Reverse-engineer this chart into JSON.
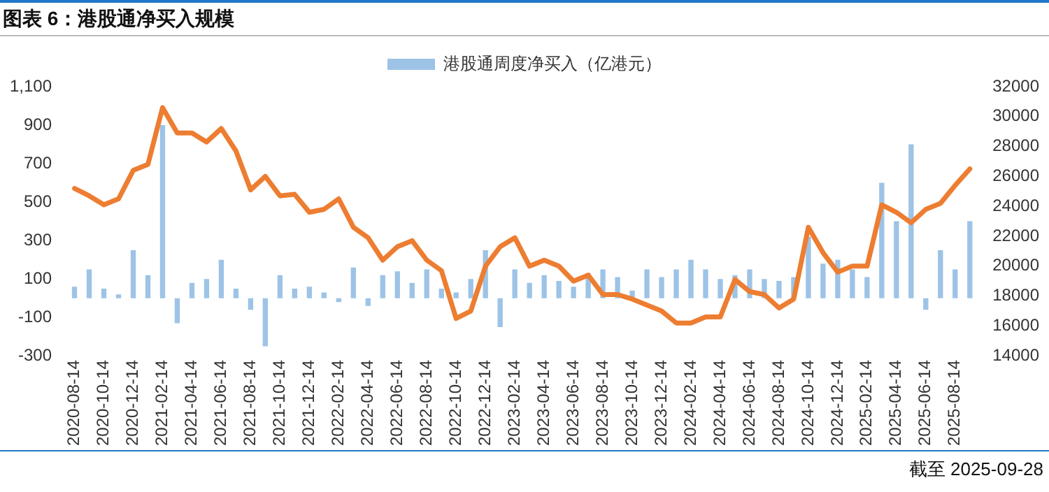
{
  "chart_data": {
    "type": "bar",
    "title": "图表 6：港股通净买入规模",
    "categories": [
      "2020-08-14",
      null,
      "2020-10-14",
      null,
      "2020-12-14",
      null,
      "2021-02-14",
      null,
      "2021-04-14",
      null,
      "2021-06-14",
      null,
      "2021-08-14",
      null,
      "2021-10-14",
      null,
      "2021-12-14",
      null,
      "2022-02-14",
      null,
      "2022-04-14",
      null,
      "2022-06-14",
      null,
      "2022-08-14",
      null,
      "2022-10-14",
      null,
      "2022-12-14",
      null,
      "2023-02-14",
      null,
      "2023-04-14",
      null,
      "2023-06-14",
      null,
      "2023-08-14",
      null,
      "2023-10-14",
      null,
      "2023-12-14",
      null,
      "2024-02-14",
      null,
      "2024-04-14",
      null,
      "2024-06-14",
      null,
      "2024-08-14",
      null,
      "2024-10-14",
      null,
      "2024-12-14",
      null,
      "2025-02-14",
      null,
      "2025-04-14",
      null,
      "2025-06-14",
      null,
      "2025-08-14",
      null
    ],
    "series": [
      {
        "name": "港股通周度净买入（亿港元）",
        "color": "#9dc3e6",
        "values": [
          60,
          150,
          50,
          20,
          250,
          120,
          900,
          -130,
          80,
          100,
          200,
          50,
          -60,
          -250,
          120,
          50,
          60,
          30,
          -20,
          160,
          -40,
          120,
          140,
          80,
          150,
          50,
          30,
          100,
          250,
          -150,
          150,
          80,
          120,
          90,
          60,
          130,
          150,
          110,
          40,
          150,
          110,
          150,
          200,
          150,
          100,
          120,
          150,
          100,
          90,
          110,
          320,
          180,
          200,
          150,
          110,
          600,
          400,
          800,
          -60,
          250,
          150,
          400
        ]
      },
      {
        "type": "line",
        "axis": "y2",
        "color": "#ed7d31",
        "values": [
          25200,
          24700,
          24100,
          24500,
          26400,
          26800,
          30600,
          28900,
          28900,
          28300,
          29200,
          27700,
          25100,
          26000,
          24700,
          24800,
          23600,
          23800,
          24500,
          22600,
          21900,
          20400,
          21300,
          21700,
          20400,
          19700,
          16500,
          17000,
          20000,
          21300,
          21900,
          20000,
          20400,
          20000,
          19000,
          19400,
          18100,
          18100,
          17800,
          17400,
          17000,
          16200,
          16200,
          16600,
          16600,
          19100,
          18300,
          18100,
          17200,
          17800,
          22600,
          20900,
          19600,
          20000,
          20000,
          24100,
          23600,
          22900,
          23800,
          24200,
          25400,
          26500
        ]
      }
    ],
    "ylim": [
      -300,
      1100
    ],
    "yticks": [
      -300,
      -100,
      100,
      300,
      500,
      700,
      900,
      {
        "value": 1100,
        "label": "1,100"
      }
    ],
    "y2lim": [
      14000,
      32000
    ],
    "y2ticks": [
      14000,
      16000,
      18000,
      20000,
      22000,
      24000,
      26000,
      28000,
      30000,
      32000
    ],
    "legend": "top",
    "grid": false,
    "annotations": [
      "截至 2025-09-28"
    ]
  }
}
